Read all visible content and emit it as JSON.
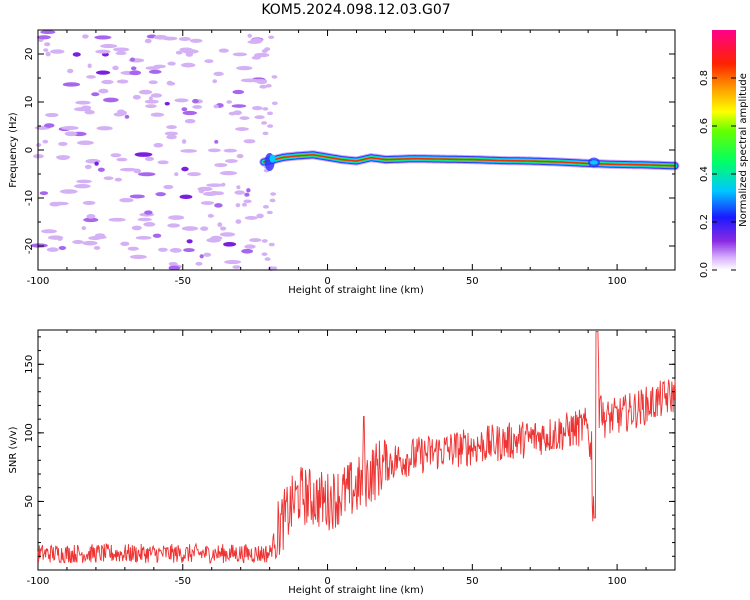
{
  "title": "KOM5.2024.098.12.03.G07",
  "chart_data": [
    {
      "type": "heatmap",
      "xlabel": "Height of straight line (km)",
      "ylabel": "Frequency (Hz)",
      "xlim": [
        -100,
        120
      ],
      "ylim": [
        -25,
        25
      ],
      "xticks": [
        -100,
        -50,
        0,
        50,
        100
      ],
      "yticks": [
        -20,
        -10,
        0,
        10,
        20
      ],
      "colorbar": {
        "label": "Normalized spectral amplitude",
        "range": [
          0,
          1
        ],
        "ticks": [
          "0.0",
          "0.2",
          "0.4",
          "0.6",
          "0.8"
        ]
      },
      "ridge": {
        "description_x_start": -22,
        "x": [
          -22,
          -15,
          -10,
          -5,
          0,
          5,
          10,
          15,
          20,
          30,
          40,
          50,
          60,
          70,
          80,
          90,
          95,
          100,
          110,
          120
        ],
        "freq": [
          -2.5,
          -1.5,
          -1.2,
          -1.0,
          -1.5,
          -2.0,
          -2.3,
          -1.6,
          -2.0,
          -1.8,
          -1.9,
          -2.0,
          -2.2,
          -2.3,
          -2.5,
          -2.8,
          -2.9,
          -3.0,
          -3.1,
          -3.3
        ]
      },
      "noise_region": [
        -100,
        -22
      ]
    },
    {
      "type": "line",
      "xlabel": "Height of straight line (km)",
      "ylabel": "SNR (v/v)",
      "xlim": [
        -100,
        120
      ],
      "ylim": [
        0,
        175
      ],
      "xticks": [
        -100,
        -50,
        0,
        50,
        100
      ],
      "yticks": [
        50,
        100,
        150
      ],
      "series": [
        {
          "color": "#ee3333",
          "x": [
            -100,
            -80,
            -60,
            -40,
            -20,
            -17,
            -10,
            0,
            5,
            10,
            15,
            20,
            30,
            40,
            50,
            60,
            70,
            80,
            90,
            92,
            93,
            95,
            100,
            110,
            120
          ],
          "y": [
            12,
            12,
            12,
            12,
            12,
            30,
            55,
            50,
            55,
            60,
            70,
            78,
            83,
            87,
            90,
            93,
            96,
            100,
            105,
            60,
            165,
            110,
            112,
            120,
            128
          ]
        }
      ]
    }
  ]
}
